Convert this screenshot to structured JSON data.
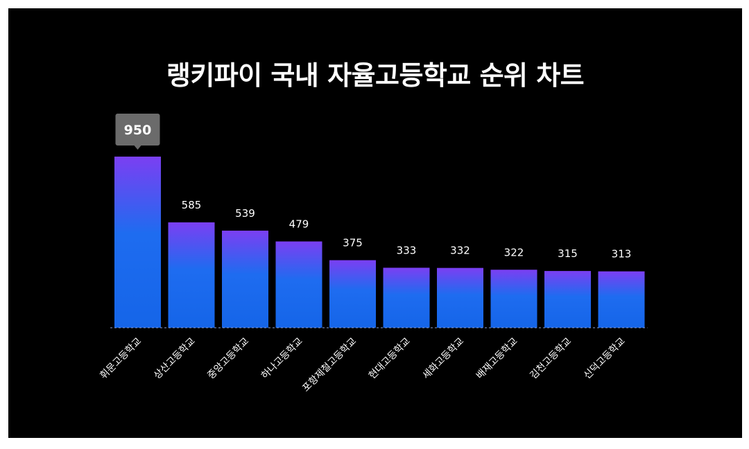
{
  "colors": {
    "background": "#000000",
    "bar_top": "#7b3ff2",
    "bar_bottom": "#1e6cf0",
    "bar_base": "#1565e8",
    "baseline": "#8aa0d8",
    "highlight_box": "#6b6b6b"
  },
  "chart_data": {
    "type": "bar",
    "title": "랭키파이 국내 자율고등학교 순위 차트",
    "categories": [
      "휘문고등학교",
      "상산고등학교",
      "중앙고등학교",
      "하나고등학교",
      "포항제철고등학교",
      "현대고등학교",
      "세화고등학교",
      "배재고등학교",
      "김천고등학교",
      "신덕고등학교"
    ],
    "values": [
      950,
      585,
      539,
      479,
      375,
      333,
      332,
      322,
      315,
      313
    ],
    "display_values": [
      "950",
      "585",
      "539",
      "479",
      "375",
      "333",
      "332",
      "322",
      "315",
      "313"
    ],
    "highlight_index": 0,
    "ylim": [
      0,
      950
    ],
    "grid": false,
    "legend": "none",
    "xlabel": "",
    "ylabel": ""
  }
}
